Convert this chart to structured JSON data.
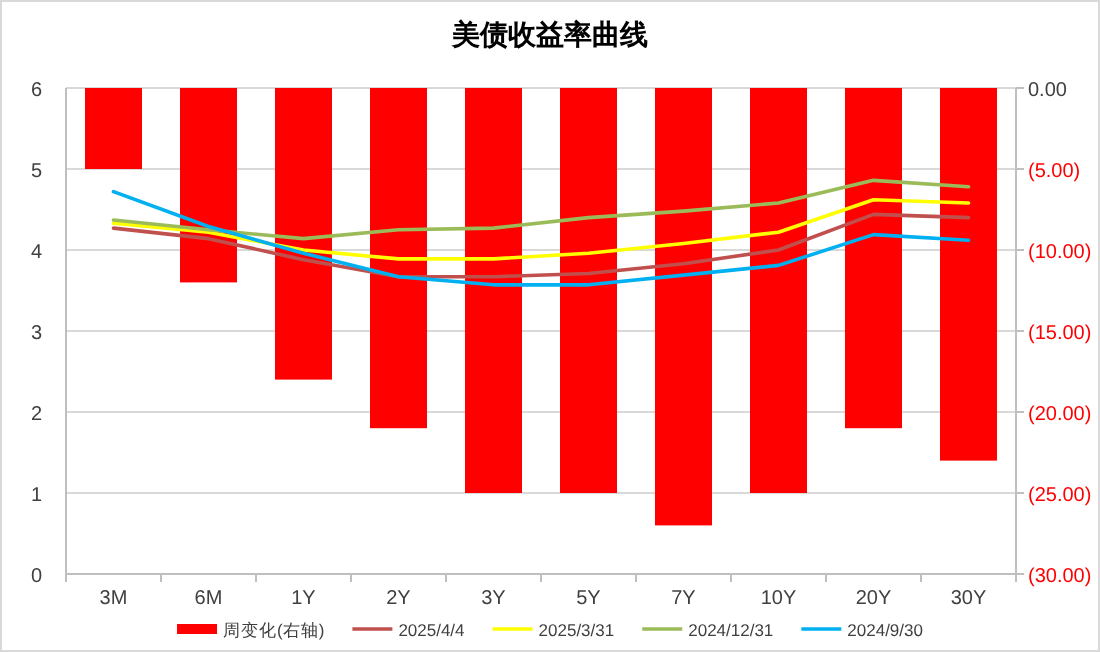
{
  "chart_data": {
    "type": "bar",
    "title": "美债收益率曲线",
    "categories": [
      "3M",
      "6M",
      "1Y",
      "2Y",
      "3Y",
      "5Y",
      "7Y",
      "10Y",
      "20Y",
      "30Y"
    ],
    "series": [
      {
        "name": "周变化(右轴)",
        "axis": "y2",
        "color": "#ff0000",
        "values": [
          -5,
          -12,
          -18,
          -21,
          -25,
          -25,
          -27,
          -25,
          -21,
          -23
        ]
      },
      {
        "name": "2025/4/4",
        "type": "line",
        "color": "#c0504d",
        "values": [
          4.27,
          4.14,
          3.88,
          3.67,
          3.67,
          3.71,
          3.83,
          4.0,
          4.44,
          4.4
        ]
      },
      {
        "name": "2025/3/31",
        "type": "line",
        "color": "#ffff00",
        "values": [
          4.33,
          4.22,
          4.0,
          3.89,
          3.89,
          3.96,
          4.08,
          4.22,
          4.62,
          4.58
        ]
      },
      {
        "name": "2024/12/31",
        "type": "line",
        "color": "#9bbb59",
        "values": [
          4.37,
          4.25,
          4.14,
          4.25,
          4.27,
          4.4,
          4.48,
          4.58,
          4.86,
          4.78
        ]
      },
      {
        "name": "2024/9/30",
        "type": "line",
        "color": "#00b0f0",
        "values": [
          4.72,
          4.29,
          3.96,
          3.67,
          3.57,
          3.57,
          3.69,
          3.81,
          4.19,
          4.12
        ]
      }
    ],
    "ylim": [
      0,
      6
    ],
    "yticks": [
      0,
      1,
      2,
      3,
      4,
      5,
      6
    ],
    "y2lim": [
      -30,
      0
    ],
    "y2ticks": [
      {
        "value": 0,
        "label": "0.00"
      },
      {
        "value": -5,
        "label": "(5.00)"
      },
      {
        "value": -10,
        "label": "(10.00)"
      },
      {
        "value": -15,
        "label": "(15.00)"
      },
      {
        "value": -20,
        "label": "(20.00)"
      },
      {
        "value": -25,
        "label": "(25.00)"
      },
      {
        "value": -30,
        "label": "(30.00)"
      }
    ],
    "grid": "y",
    "legend": "bottom",
    "marker": "none",
    "line_style": "solid"
  }
}
